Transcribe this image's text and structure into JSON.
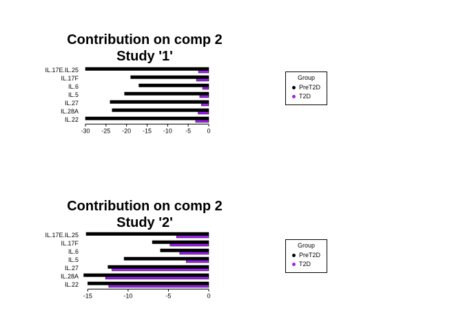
{
  "page": {
    "background": "#FFFFFF"
  },
  "colors": {
    "pret2d": "#000000",
    "t2d": "#A020F0",
    "axis": "#000000"
  },
  "legend": {
    "title": "Group",
    "entries": [
      {
        "label": "PreT2D",
        "color": "#000000"
      },
      {
        "label": "T2D",
        "color": "#A020F0"
      }
    ]
  },
  "chart_data": [
    {
      "type": "bar",
      "orientation": "horizontal",
      "title": "Contribution on comp 2",
      "subtitle": "Study '1'",
      "xlabel": "",
      "ylabel": "",
      "grid": false,
      "legend_position": "right",
      "categories": [
        "IL.17E.IL.25",
        "IL.17F",
        "IL.6",
        "IL.5",
        "IL.27",
        "IL.28A",
        "IL.22"
      ],
      "series": [
        {
          "name": "PreT2D",
          "color": "#000000",
          "values": [
            -30,
            -19,
            -17,
            -20.5,
            -24,
            -23.5,
            -30
          ]
        },
        {
          "name": "T2D",
          "color": "#A020F0",
          "values": [
            -2.5,
            -3,
            -1.5,
            -2.2,
            -1.8,
            -2.6,
            -3.2
          ]
        }
      ],
      "xticks": [
        -30,
        -25,
        -20,
        -15,
        -10,
        -5,
        0
      ],
      "xlim": [
        -31,
        0
      ]
    },
    {
      "type": "bar",
      "orientation": "horizontal",
      "title": "Contribution on comp 2",
      "subtitle": "Study '2'",
      "xlabel": "",
      "ylabel": "",
      "grid": false,
      "legend_position": "right",
      "categories": [
        "IL.17E.IL.25",
        "IL.17F",
        "IL.6",
        "IL.5",
        "IL.27",
        "IL.28A",
        "IL.22"
      ],
      "series": [
        {
          "name": "PreT2D",
          "color": "#000000",
          "values": [
            -15.2,
            -7,
            -6,
            -10.5,
            -12.5,
            -15.5,
            -15
          ]
        },
        {
          "name": "T2D",
          "color": "#A020F0",
          "values": [
            -4,
            -4.8,
            -3.6,
            -2.8,
            -12,
            -12.8,
            -12.4
          ]
        }
      ],
      "xticks": [
        -15,
        -10,
        -5,
        0
      ],
      "xlim": [
        -15.8,
        0
      ]
    }
  ]
}
